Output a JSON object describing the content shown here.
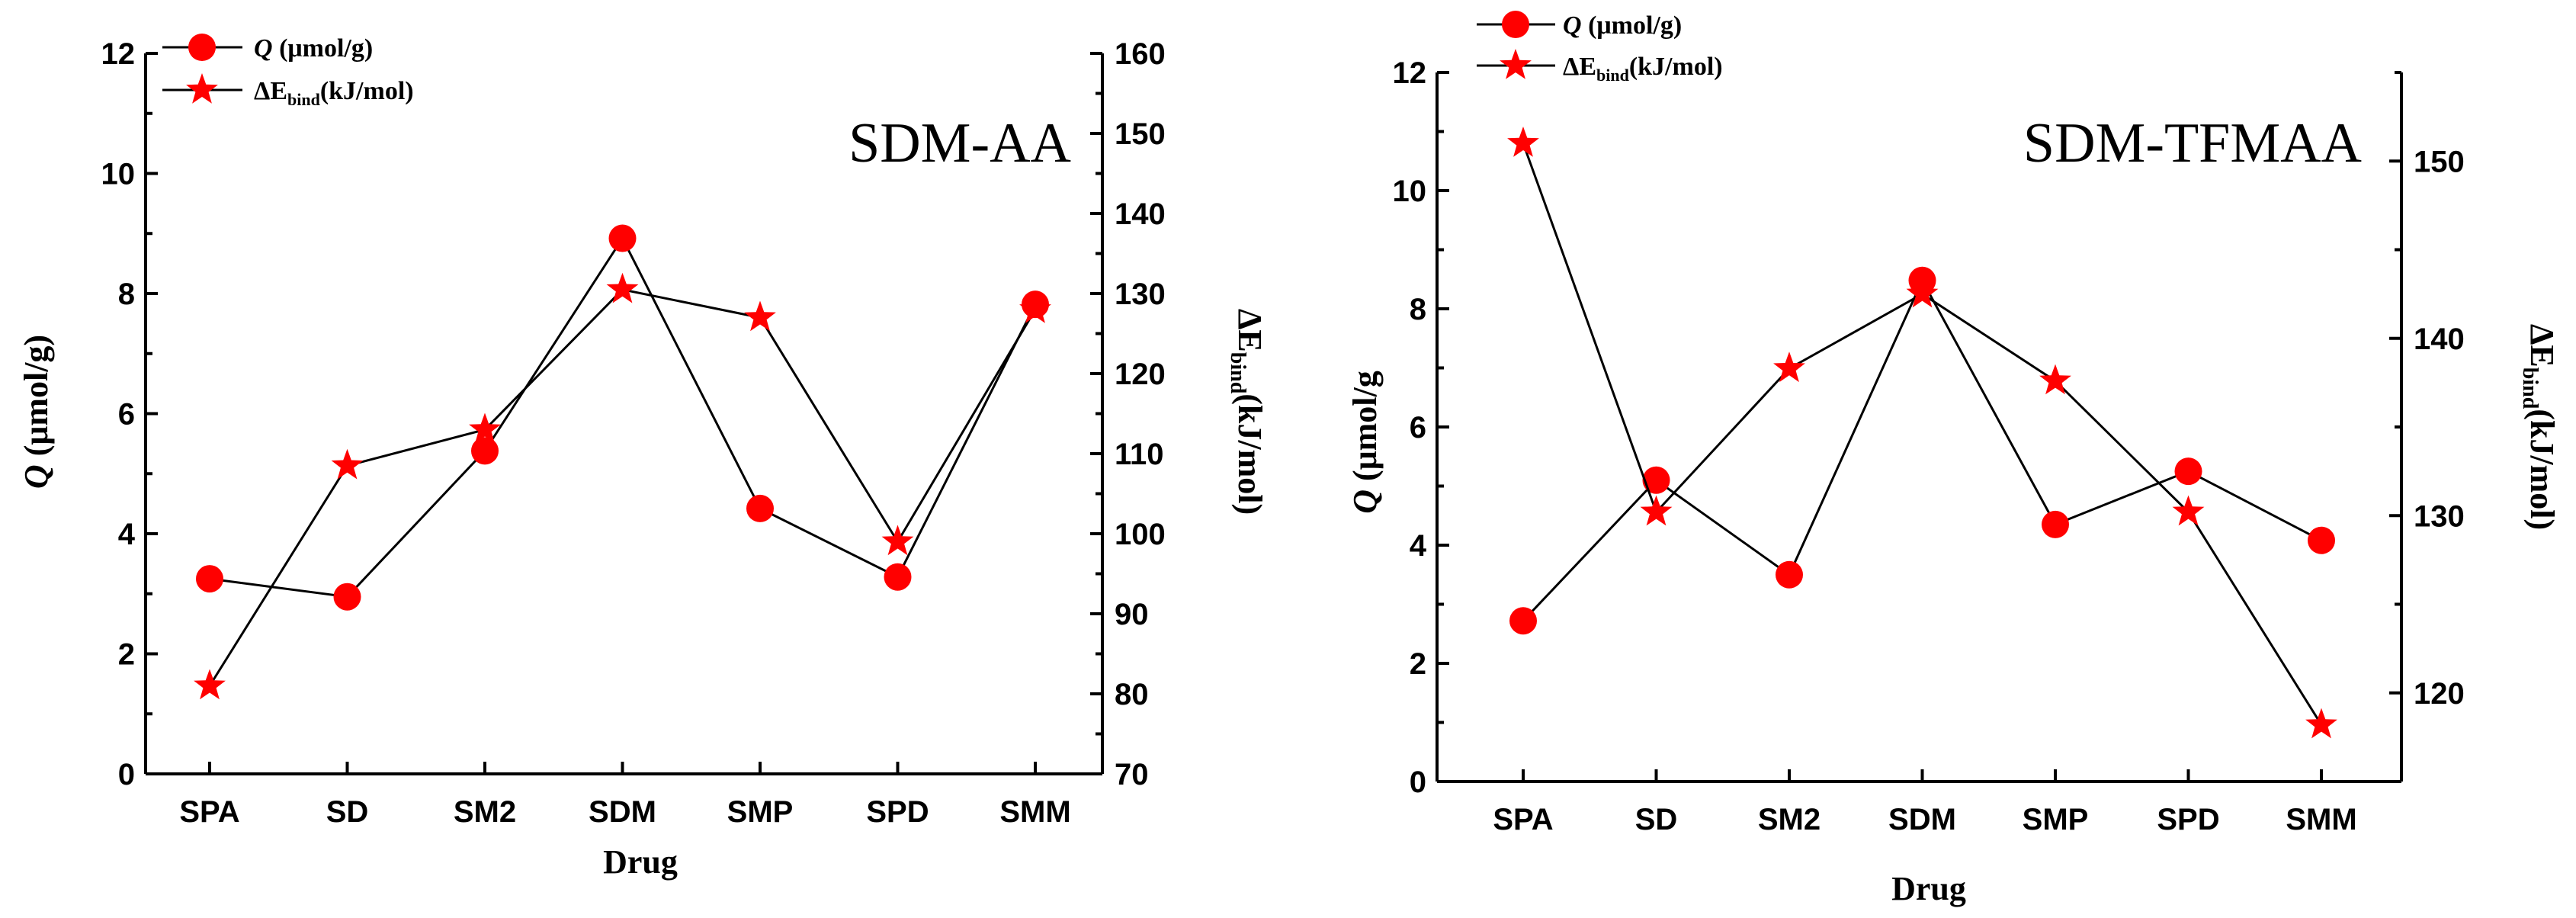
{
  "chart_data": [
    {
      "type": "line",
      "title": "SDM-AA",
      "categories": [
        "SPA",
        "SD",
        "SM2",
        "SDM",
        "SMP",
        "SPD",
        "SMM"
      ],
      "xlabel": "Drug",
      "ylabel": {
        "italic": "Q",
        "rest": " (μmol/g)"
      },
      "ylabel_right": {
        "prefix": "ΔE",
        "sub": "bind",
        "rest": "(kJ/mol)"
      },
      "ylim": [
        0,
        12
      ],
      "y_ticks": [
        0,
        2,
        4,
        6,
        8,
        10,
        12
      ],
      "ylim_right": [
        70,
        160
      ],
      "y_ticks_right": [
        70,
        80,
        90,
        100,
        110,
        120,
        130,
        140,
        150,
        160
      ],
      "legend_position": "top-left",
      "series": [
        {
          "legend": {
            "italic": "Q",
            "rest": " (μmol/g)"
          },
          "marker": "circle",
          "axis": "left",
          "values": [
            3.25,
            2.95,
            5.38,
            8.92,
            4.42,
            3.28,
            7.82
          ]
        },
        {
          "legend": {
            "prefix": "ΔE",
            "sub": "bind",
            "rest": "(kJ/mol)"
          },
          "marker": "star",
          "axis": "right",
          "values": [
            81,
            108.5,
            113,
            130.5,
            127,
            99,
            128
          ]
        }
      ],
      "colors": {
        "marker": "#ff0000",
        "line": "#000000"
      }
    },
    {
      "type": "line",
      "title": "SDM-TFMAA",
      "categories": [
        "SPA",
        "SD",
        "SM2",
        "SDM",
        "SMP",
        "SPD",
        "SMM"
      ],
      "xlabel": "Drug",
      "ylabel": {
        "italic": "Q",
        "rest": " (μmol/g"
      },
      "ylabel_right": {
        "prefix": "ΔE",
        "sub": "bind",
        "rest": "(kJ/mol)"
      },
      "ylim": [
        0,
        12
      ],
      "y_ticks": [
        0,
        2,
        4,
        6,
        8,
        10,
        12
      ],
      "ylim_right": [
        115,
        155
      ],
      "y_ticks_right": [
        120,
        130,
        140,
        150
      ],
      "legend_position": "top-left",
      "series": [
        {
          "legend": {
            "italic": "Q",
            "rest": " (μmol/g)"
          },
          "marker": "circle",
          "axis": "left",
          "values": [
            2.72,
            5.1,
            3.5,
            8.48,
            4.35,
            5.25,
            4.08
          ]
        },
        {
          "legend": {
            "prefix": "ΔE",
            "sub": "bind",
            "rest": "(kJ/mol)"
          },
          "marker": "star",
          "axis": "right",
          "values": [
            151,
            130.2,
            138.3,
            142.5,
            137.6,
            130.2,
            118.2
          ]
        }
      ],
      "colors": {
        "marker": "#ff0000",
        "line": "#000000"
      }
    }
  ]
}
